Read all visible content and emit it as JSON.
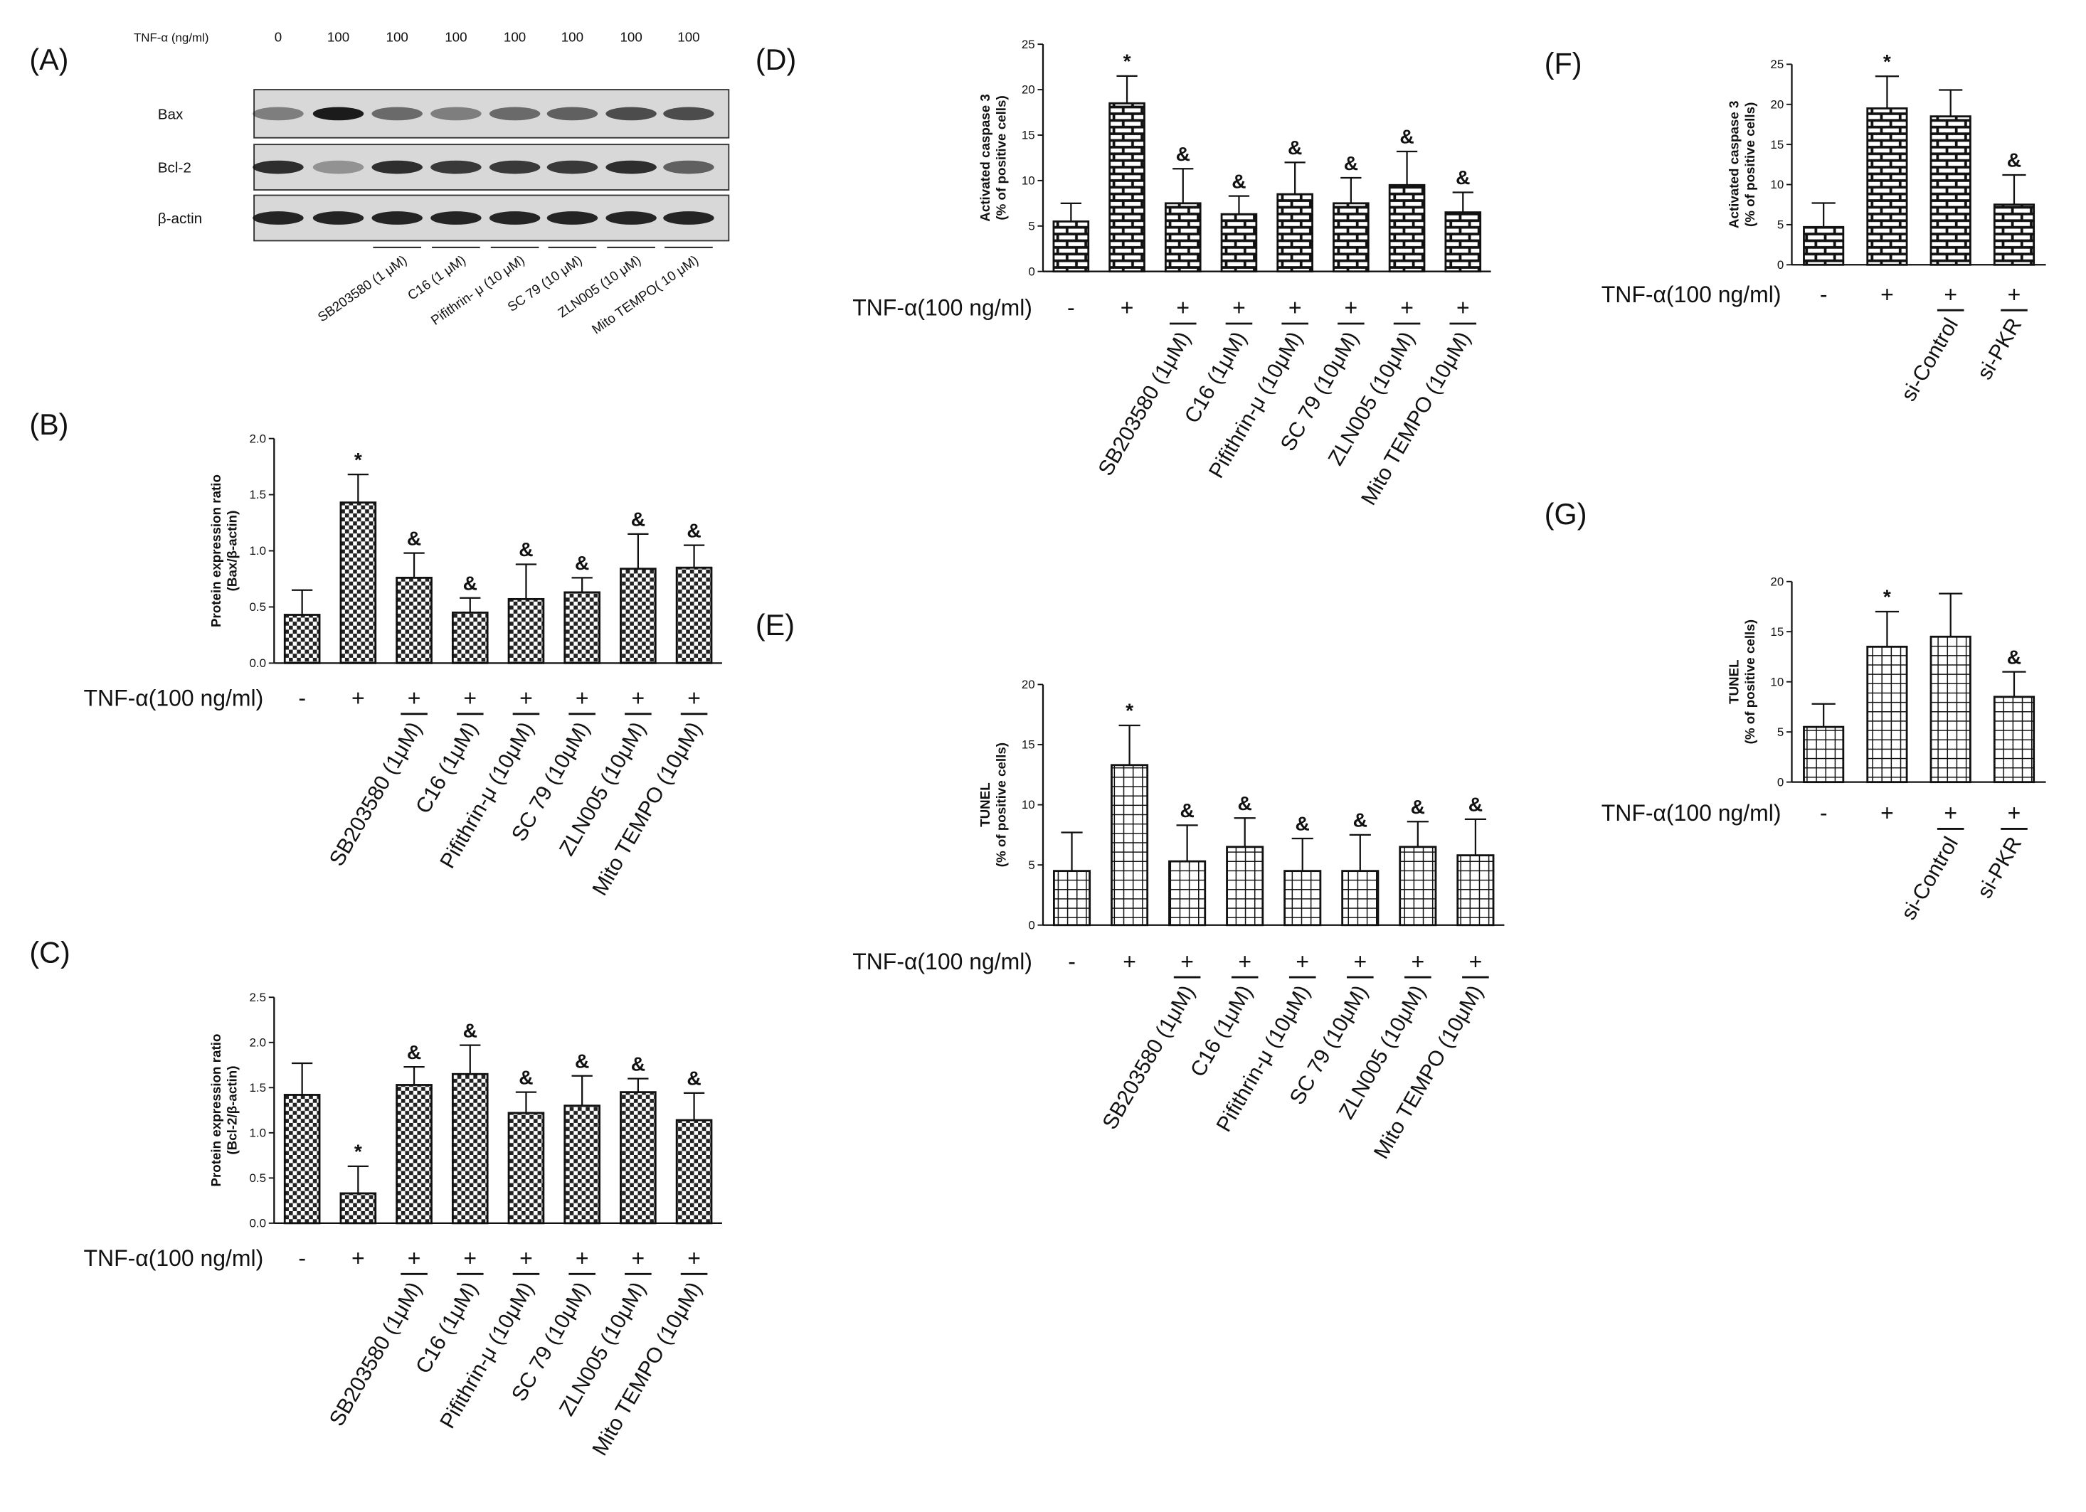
{
  "blot": {
    "panel": "(A)",
    "dose_label": "TNF-α (ng/ml)",
    "doses": [
      "0",
      "100",
      "100",
      "100",
      "100",
      "100",
      "100",
      "100"
    ],
    "rows": [
      "Bax",
      "Bcl-2",
      "β-actin"
    ],
    "treatments": [
      "SB203580 (1 μM)",
      "C16 (1 μM)",
      "Pifithrin- μ (10 μM)",
      "SC 79 (10 μM)",
      "ZLN005 (10 μM)",
      "Mito TEMPO( 10 μM)"
    ]
  },
  "chart_data": [
    {
      "type": "bar",
      "panel": "(B)",
      "ylabel": [
        "Protein expression ratio",
        "(Bax/β-actin)"
      ],
      "treatment_label": "TNF-α(100 ng/ml)",
      "pattern": "checker",
      "categories": [
        "-",
        "+",
        "+",
        "+",
        "+",
        "+",
        "+",
        "+"
      ],
      "sublabels": [
        null,
        null,
        "SB203580 (1μM)",
        "C16 (1μM)",
        "Pifithrin-μ (10μM)",
        "SC 79 (10μM)",
        "ZLN005 (10μM)",
        "Mito TEMPO (10μM)"
      ],
      "values": [
        0.43,
        1.43,
        0.76,
        0.45,
        0.57,
        0.63,
        0.84,
        0.85
      ],
      "errors": [
        0.22,
        0.25,
        0.22,
        0.13,
        0.31,
        0.13,
        0.31,
        0.2
      ],
      "annotations": [
        null,
        "*",
        "&",
        "&",
        "&",
        "&",
        "&",
        "&"
      ],
      "ylim": [
        0,
        2
      ],
      "yticks": [
        {
          "value": 0,
          "label": "0.0"
        },
        0.5,
        {
          "value": 1,
          "label": "1.0"
        },
        1.5,
        {
          "value": 2,
          "label": "2.0"
        }
      ]
    },
    {
      "type": "bar",
      "panel": "(C)",
      "ylabel": [
        "Protein expression ratio",
        "(Bcl-2/β-actin)"
      ],
      "treatment_label": "TNF-α(100 ng/ml)",
      "pattern": "checker",
      "categories": [
        "-",
        "+",
        "+",
        "+",
        "+",
        "+",
        "+",
        "+"
      ],
      "sublabels": [
        null,
        null,
        "SB203580 (1μM)",
        "C16 (1μM)",
        "Pifithrin-μ (10μM)",
        "SC 79 (10μM)",
        "ZLN005 (10μM)",
        "Mito TEMPO (10μM)"
      ],
      "values": [
        1.42,
        0.33,
        1.53,
        1.65,
        1.22,
        1.3,
        1.45,
        1.14
      ],
      "errors": [
        0.35,
        0.3,
        0.2,
        0.32,
        0.23,
        0.33,
        0.15,
        0.3
      ],
      "annotations": [
        null,
        "*",
        "&",
        "&",
        "&",
        "&",
        "&",
        "&"
      ],
      "ylim": [
        0,
        2.5
      ],
      "yticks": [
        {
          "value": 0,
          "label": "0.0"
        },
        0.5,
        {
          "value": 1,
          "label": "1.0"
        },
        1.5,
        {
          "value": 2,
          "label": "2.0"
        },
        2.5
      ]
    },
    {
      "type": "bar",
      "panel": "(D)",
      "ylabel": [
        "Activated caspase 3",
        "(% of positive cells)"
      ],
      "treatment_label": "TNF-α(100 ng/ml)",
      "pattern": "brick",
      "categories": [
        "-",
        "+",
        "+",
        "+",
        "+",
        "+",
        "+",
        "+"
      ],
      "sublabels": [
        null,
        null,
        "SB203580 (1μM)",
        "C16 (1μM)",
        "Pifithrin-μ (10μM)",
        "SC 79 (10μM)",
        "ZLN005 (10μM)",
        "Mito TEMPO (10μM)"
      ],
      "values": [
        5.5,
        18.5,
        7.5,
        6.3,
        8.5,
        7.5,
        9.5,
        6.5
      ],
      "errors": [
        2,
        3,
        3.8,
        2,
        3.5,
        2.8,
        3.7,
        2.2
      ],
      "annotations": [
        null,
        "*",
        "&",
        "&",
        "&",
        "&",
        "&",
        "&"
      ],
      "ylim": [
        0,
        25
      ],
      "yticks": [
        0,
        5,
        10,
        15,
        20,
        25
      ]
    },
    {
      "type": "bar",
      "panel": "(E)",
      "ylabel": [
        "TUNEL",
        "(% of positive cells)"
      ],
      "treatment_label": "TNF-α(100 ng/ml)",
      "pattern": "grid",
      "categories": [
        "-",
        "+",
        "+",
        "+",
        "+",
        "+",
        "+",
        "+"
      ],
      "sublabels": [
        null,
        null,
        "SB203580 (1μM)",
        "C16 (1μM)",
        "Pifithrin-μ (10μM)",
        "SC 79 (10μM)",
        "ZLN005 (10μM)",
        "Mito TEMPO (10μM)"
      ],
      "values": [
        4.5,
        13.3,
        5.3,
        6.5,
        4.5,
        4.5,
        6.5,
        5.8
      ],
      "errors": [
        3.2,
        3.3,
        3,
        2.4,
        2.7,
        3,
        2.1,
        3
      ],
      "annotations": [
        null,
        "*",
        "&",
        "&",
        "&",
        "&",
        "&",
        "&"
      ],
      "ylim": [
        0,
        20
      ],
      "yticks": [
        0,
        5,
        10,
        15,
        20
      ]
    },
    {
      "type": "bar",
      "panel": "(F)",
      "ylabel": [
        "Activated caspase 3",
        "(% of positive cells)"
      ],
      "treatment_label": "TNF-α(100 ng/ml)",
      "pattern": "brick",
      "categories": [
        "-",
        "+",
        "+",
        "+"
      ],
      "sublabels": [
        null,
        null,
        "si-Control",
        "si-PKR"
      ],
      "values": [
        4.7,
        19.5,
        18.5,
        7.5
      ],
      "errors": [
        3,
        4,
        3.3,
        3.7
      ],
      "annotations": [
        null,
        "*",
        null,
        "&"
      ],
      "ylim": [
        0,
        25
      ],
      "yticks": [
        0,
        5,
        10,
        15,
        20,
        25
      ]
    },
    {
      "type": "bar",
      "panel": "(G)",
      "ylabel": [
        "TUNEL",
        "(% of positive cells)"
      ],
      "treatment_label": "TNF-α(100 ng/ml)",
      "pattern": "grid",
      "categories": [
        "-",
        "+",
        "+",
        "+"
      ],
      "sublabels": [
        null,
        null,
        "si-Control",
        "si-PKR"
      ],
      "values": [
        5.5,
        13.5,
        14.5,
        8.5
      ],
      "errors": [
        2.3,
        3.5,
        4.3,
        2.5
      ],
      "annotations": [
        null,
        "*",
        null,
        "&"
      ],
      "ylim": [
        0,
        20
      ],
      "yticks": [
        0,
        5,
        10,
        15,
        20
      ]
    }
  ]
}
